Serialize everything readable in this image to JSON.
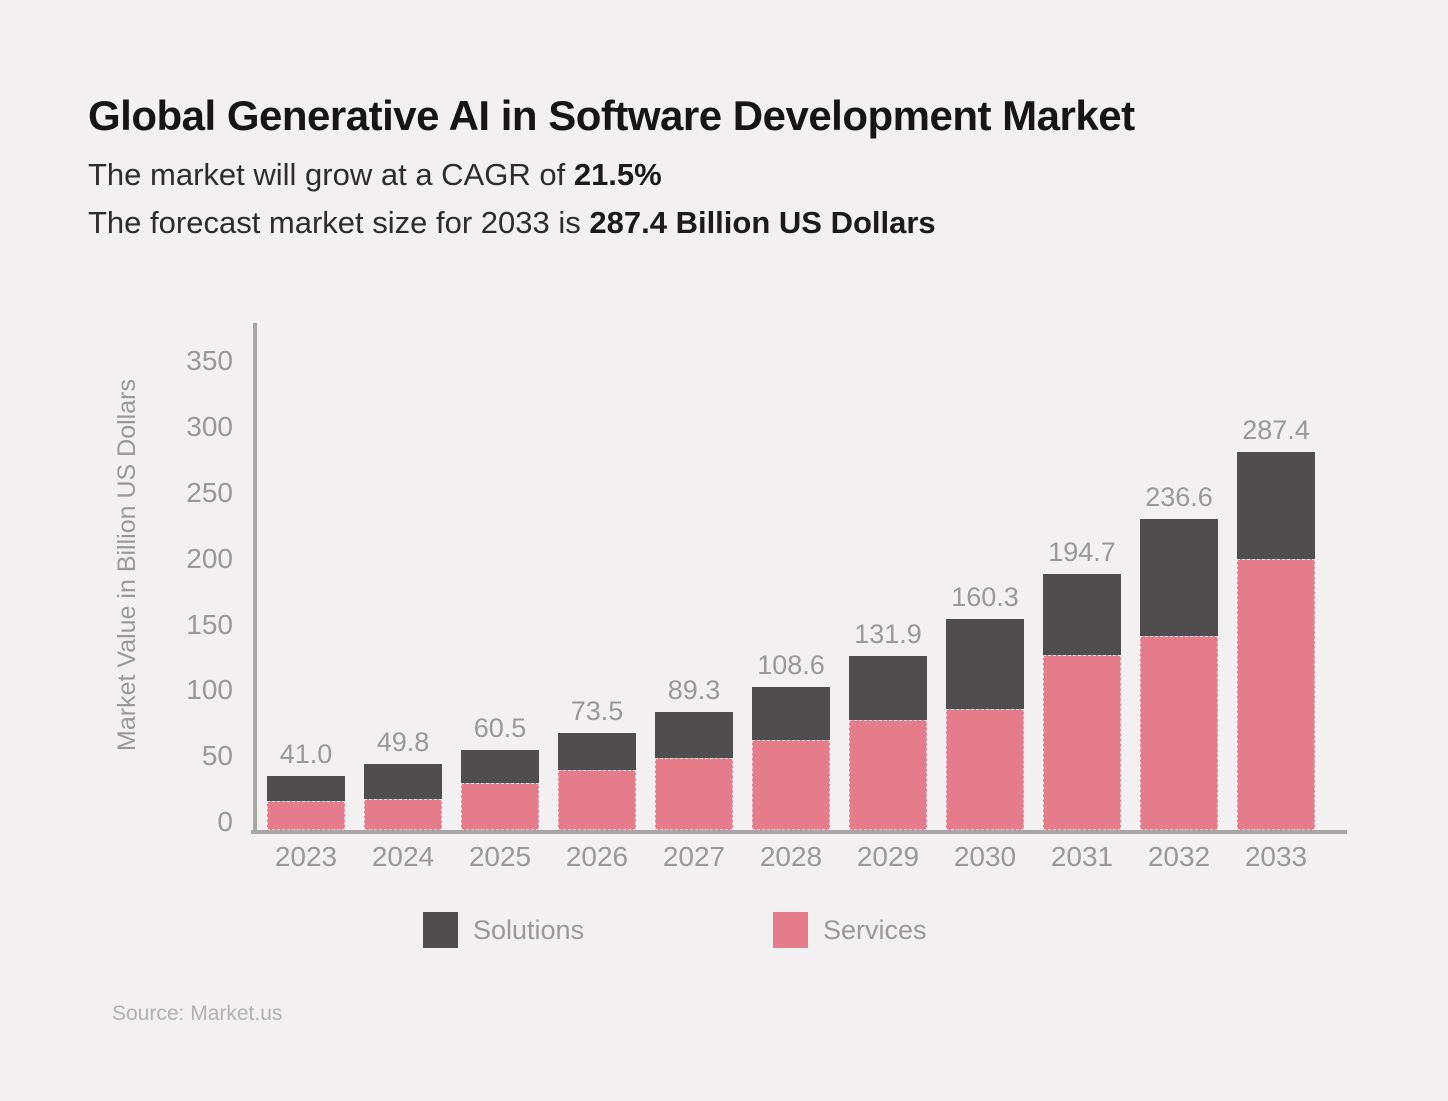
{
  "header": {
    "title": "Global Generative AI in Software Development Market",
    "subtitle1_prefix": "The market will grow at a CAGR of ",
    "subtitle1_bold": "21.5%",
    "subtitle2_prefix": "The forecast market size for 2033 is ",
    "subtitle2_bold": "287.4 Billion US Dollars"
  },
  "chart_data": {
    "type": "bar",
    "stacked": true,
    "title": "Global Generative AI in Software Development Market",
    "xlabel": "",
    "ylabel": "Market Value in Billion US Dollars",
    "ylim": [
      0,
      350
    ],
    "yticks": [
      0,
      50,
      100,
      150,
      200,
      250,
      300,
      350
    ],
    "grid": false,
    "legend_position": "bottom",
    "categories": [
      "2023",
      "2024",
      "2025",
      "2026",
      "2027",
      "2028",
      "2029",
      "2030",
      "2031",
      "2032",
      "2033"
    ],
    "totals": [
      41.0,
      49.8,
      60.5,
      73.5,
      89.3,
      108.6,
      131.9,
      160.3,
      194.7,
      236.6,
      287.4
    ],
    "total_labels": [
      "41.0",
      "49.8",
      "60.5",
      "73.5",
      "89.3",
      "108.6",
      "131.9",
      "160.3",
      "194.7",
      "236.6",
      "287.4"
    ],
    "series": [
      {
        "name": "Solutions",
        "color": "#4f4d4e",
        "values": [
          19.0,
          26.5,
          24.9,
          27.6,
          34.4,
          40.1,
          48.3,
          68.1,
          61.9,
          89.2,
          81.6
        ]
      },
      {
        "name": "Services",
        "color": "#e57c8c",
        "values": [
          22.0,
          23.3,
          35.6,
          45.9,
          54.9,
          68.5,
          83.6,
          92.2,
          132.8,
          147.4,
          205.8
        ]
      }
    ]
  },
  "legend": {
    "items": [
      {
        "label": "Solutions",
        "color": "#4f4d4e"
      },
      {
        "label": "Services",
        "color": "#e57c8c"
      }
    ]
  },
  "footer": {
    "source": "Source: Market.us"
  }
}
